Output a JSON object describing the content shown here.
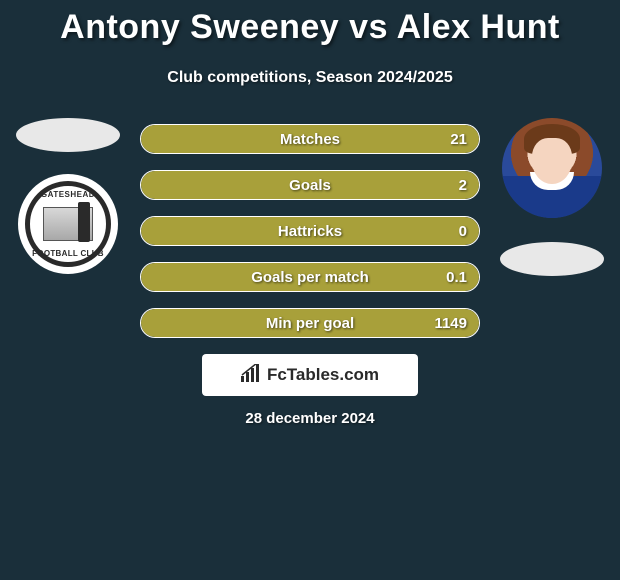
{
  "title": "Antony Sweeney vs Alex Hunt",
  "subtitle": "Club competitions, Season 2024/2025",
  "date": "28 december 2024",
  "branding": "FcTables.com",
  "background_color": "#1a2f3a",
  "left": {
    "player_name": "Antony Sweeney",
    "club_name_top": "GATESHEAD",
    "club_name_bottom": "FOOTBALL CLUB"
  },
  "right": {
    "player_name": "Alex Hunt"
  },
  "bar_style": {
    "fill_color": "#a8a03a",
    "border_color": "#ffffff",
    "text_color": "#ffffff",
    "radius": 15,
    "height": 30,
    "gap": 16,
    "font_size": 15,
    "font_weight": 800
  },
  "stats": [
    {
      "label": "Matches",
      "value_text": "21",
      "fill_pct": 100
    },
    {
      "label": "Goals",
      "value_text": "2",
      "fill_pct": 100
    },
    {
      "label": "Hattricks",
      "value_text": "0",
      "fill_pct": 100
    },
    {
      "label": "Goals per match",
      "value_text": "0.1",
      "fill_pct": 100
    },
    {
      "label": "Min per goal",
      "value_text": "1149",
      "fill_pct": 100
    }
  ]
}
